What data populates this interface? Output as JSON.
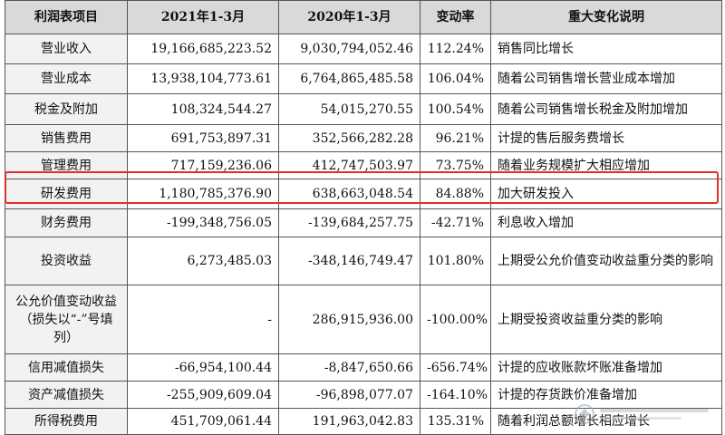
{
  "table": {
    "headers": [
      "利润表项目",
      "2021年1-3月",
      "2020年1-3月",
      "变动率",
      "重大变化说明"
    ],
    "rows": [
      {
        "item": "营业收入",
        "y2021": "19,166,685,223.52",
        "y2020": "9,030,794,052.46",
        "rate": "112.24%",
        "note": "销售同比增长"
      },
      {
        "item": "营业成本",
        "y2021": "13,938,104,773.61",
        "y2020": "6,764,865,485.58",
        "rate": "106.04%",
        "note": "随着公司销售增长营业成本增加"
      },
      {
        "item": "税金及附加",
        "y2021": "108,324,544.27",
        "y2020": "54,015,270.55",
        "rate": "100.54%",
        "note": "随着公司销售增长税金及附加增加"
      },
      {
        "item": "销售费用",
        "y2021": "691,753,897.31",
        "y2020": "352,566,282.28",
        "rate": "96.21%",
        "note": "计提的售后服务费增长"
      },
      {
        "item": "管理费用",
        "y2021": "717,159,236.06",
        "y2020": "412,747,503.97",
        "rate": "73.75%",
        "note": "随着业务规模扩大相应增加"
      },
      {
        "item": "研发费用",
        "y2021": "1,180,785,376.90",
        "y2020": "638,663,048.54",
        "rate": "84.88%",
        "note": "加大研发投入"
      },
      {
        "item": "财务费用",
        "y2021": "-199,348,756.05",
        "y2020": "-139,684,257.75",
        "rate": "-42.71%",
        "note": "利息收入增加"
      },
      {
        "item": "投资收益",
        "y2021": "6,273,485.03",
        "y2020": "-348,146,749.47",
        "rate": "101.80%",
        "note": "上期受公允价值变动收益重分类的影响"
      },
      {
        "item": "公允价值变动收益（损失以“-”号填列）",
        "y2021": "-",
        "y2020": "286,915,936.00",
        "rate": "-100.00%",
        "note": "上期受投资收益重分类的影响"
      },
      {
        "item": "信用减值损失",
        "y2021": "-66,954,100.44",
        "y2020": "-8,847,650.66",
        "rate": "-656.74%",
        "note": "计提的应收账款坏账准备增加"
      },
      {
        "item": "资产减值损失",
        "y2021": "-255,909,609.04",
        "y2020": "-96,898,077.07",
        "rate": "-164.10%",
        "note": "计提的存货跌价准备增加"
      },
      {
        "item": "所得税费用",
        "y2021": "451,709,061.44",
        "y2020": "191,963,042.83",
        "rate": "135.31%",
        "note": "随着利润总额增长相应增长"
      }
    ]
  },
  "colors": {
    "header_bg": "#d9d9d9",
    "label_bg": "#f2f2f2",
    "highlight_border": "#e32d2d"
  },
  "highlighted_row": "研发费用"
}
